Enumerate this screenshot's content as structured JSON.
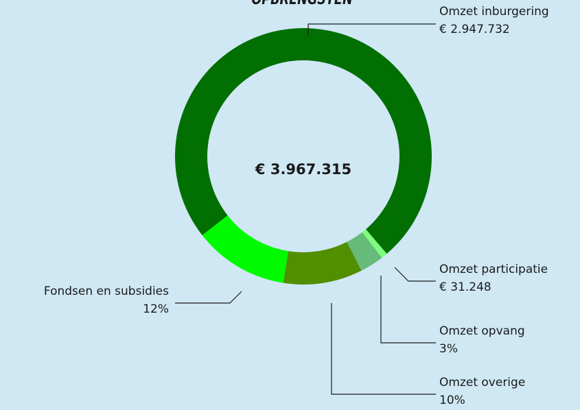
{
  "chart_data": {
    "type": "donut",
    "title": "OPBRENGSTEN",
    "center_label": "€ 3.967.315",
    "categories": [
      "Omzet inburgering",
      "Omzet participatie",
      "Omzet opvang",
      "Omzet overige",
      "Fondsen en subsidies"
    ],
    "values": [
      2947732,
      31248,
      119000,
      396000,
      473335
    ],
    "value_labels": [
      "€ 2.947.732",
      "€ 31.248",
      "3%",
      "10%",
      "12%"
    ],
    "colors": [
      "#016f01",
      "#7dfc7d",
      "#66ba7a",
      "#518e00",
      "#00fa00"
    ]
  }
}
